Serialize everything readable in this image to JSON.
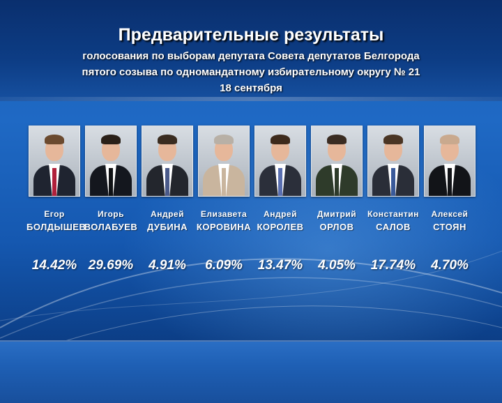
{
  "title": "Предварительные результаты",
  "subtitle_line1": "голосования по выборам депутата Совета депутатов Белгорода",
  "subtitle_line2": "пятого созыва по одномандатному избирательному округу № 21",
  "subtitle_line3": "18 сентября",
  "candidates": [
    {
      "first_name": "Егор",
      "last_name": "БОЛДЫШЕВ",
      "percent": "14.42%",
      "suit": "#1f2430",
      "hair": "#6b4a2f",
      "tie": "#b0203a"
    },
    {
      "first_name": "Игорь",
      "last_name": "ВОЛАБУЕВ",
      "percent": "29.69%",
      "suit": "#14171e",
      "hair": "#2a2018",
      "tie": "#101215"
    },
    {
      "first_name": "Андрей",
      "last_name": "ДУБИНА",
      "percent": "4.91%",
      "suit": "#23262d",
      "hair": "#3a2c20",
      "tie": "#4a5a8a"
    },
    {
      "first_name": "Елизавета",
      "last_name": "КОРОВИНА",
      "percent": "6.09%",
      "suit": "#c9b59e",
      "hair": "#b8b0a6",
      "tie": "#c9b59e"
    },
    {
      "first_name": "Андрей",
      "last_name": "КОРОЛЕВ",
      "percent": "13.47%",
      "suit": "#2b2f3a",
      "hair": "#3d2a1c",
      "tie": "#5a6fb0"
    },
    {
      "first_name": "Дмитрий",
      "last_name": "ОРЛОВ",
      "percent": "4.05%",
      "suit": "#2e3b2a",
      "hair": "#3a2c22",
      "tie": "#2e3b2a"
    },
    {
      "first_name": "Константин",
      "last_name": "САЛОВ",
      "percent": "17.74%",
      "suit": "#2a2e38",
      "hair": "#4a3524",
      "tie": "#3a5a9a"
    },
    {
      "first_name": "Алексей",
      "last_name": "СТОЯН",
      "percent": "4.70%",
      "suit": "#121418",
      "hair": "#c9a98e",
      "tie": "#121418"
    }
  ]
}
